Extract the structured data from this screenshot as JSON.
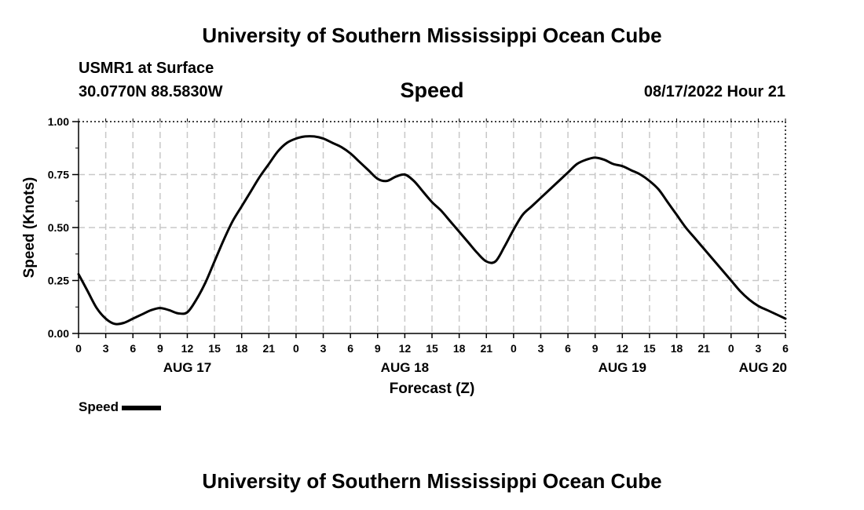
{
  "header": {
    "title": "University of Southern Mississippi Ocean Cube",
    "station": "USMR1 at Surface",
    "coords": "30.0770N  88.5830W",
    "datetime": "08/17/2022 Hour 21"
  },
  "footer": {
    "title": "University of Southern Mississippi Ocean Cube"
  },
  "chart_data": {
    "type": "line",
    "title": "Speed",
    "xlabel": "Forecast (Z)",
    "ylabel": "Speed (Knots)",
    "ylim": [
      0,
      1
    ],
    "xlim": [
      0,
      78
    ],
    "grid": true,
    "legend_position": "bottom-left",
    "y_ticks": [
      "0.00",
      "0.25",
      "0.50",
      "0.75",
      "1.00"
    ],
    "x_tick_labels": [
      "0",
      "3",
      "6",
      "9",
      "12",
      "15",
      "18",
      "21",
      "0",
      "3",
      "6",
      "9",
      "12",
      "15",
      "18",
      "21",
      "0",
      "3",
      "6",
      "9",
      "12",
      "15",
      "18",
      "21",
      "0",
      "3",
      "6"
    ],
    "date_labels": [
      {
        "label": "AUG 17",
        "hour": 12
      },
      {
        "label": "AUG 18",
        "hour": 36
      },
      {
        "label": "AUG 19",
        "hour": 60
      },
      {
        "label": "AUG 20",
        "hour": 78
      }
    ],
    "series": [
      {
        "name": "Speed",
        "color": "#000000",
        "x": [
          0,
          1,
          2,
          3,
          4,
          5,
          6,
          7,
          8,
          9,
          10,
          11,
          12,
          13,
          14,
          15,
          16,
          17,
          18,
          19,
          20,
          21,
          22,
          23,
          24,
          25,
          26,
          27,
          28,
          29,
          30,
          31,
          32,
          33,
          34,
          35,
          36,
          37,
          38,
          39,
          40,
          41,
          42,
          43,
          44,
          45,
          46,
          47,
          48,
          49,
          50,
          51,
          52,
          53,
          54,
          55,
          56,
          57,
          58,
          59,
          60,
          61,
          62,
          63,
          64,
          65,
          66,
          67,
          68,
          69,
          70,
          71,
          72,
          73,
          74,
          75,
          76,
          77,
          78
        ],
        "y": [
          0.28,
          0.2,
          0.12,
          0.07,
          0.045,
          0.05,
          0.07,
          0.09,
          0.11,
          0.12,
          0.11,
          0.095,
          0.1,
          0.16,
          0.24,
          0.34,
          0.44,
          0.53,
          0.6,
          0.67,
          0.74,
          0.8,
          0.86,
          0.9,
          0.92,
          0.93,
          0.93,
          0.92,
          0.9,
          0.88,
          0.85,
          0.81,
          0.77,
          0.73,
          0.72,
          0.74,
          0.75,
          0.72,
          0.67,
          0.62,
          0.58,
          0.53,
          0.48,
          0.43,
          0.38,
          0.34,
          0.34,
          0.41,
          0.49,
          0.56,
          0.6,
          0.64,
          0.68,
          0.72,
          0.76,
          0.8,
          0.82,
          0.83,
          0.82,
          0.8,
          0.79,
          0.77,
          0.75,
          0.72,
          0.68,
          0.62,
          0.56,
          0.5,
          0.45,
          0.4,
          0.35,
          0.3,
          0.25,
          0.2,
          0.16,
          0.13,
          0.11,
          0.09,
          0.07
        ]
      }
    ]
  }
}
